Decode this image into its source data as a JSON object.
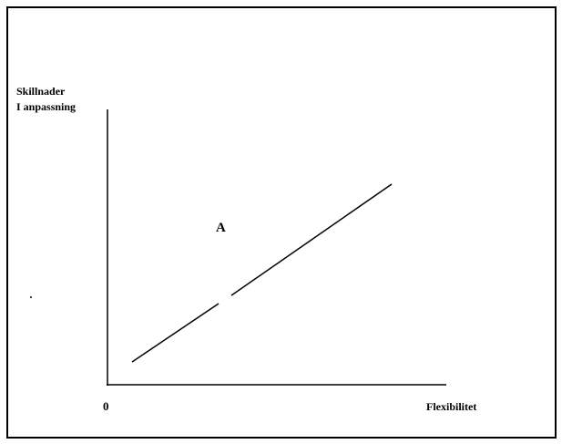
{
  "y_axis_label": [
    "Skillnader",
    "I anpassning"
  ],
  "origin_label": "0",
  "x_axis_label": "Flexibilitet",
  "annotation": "A"
}
